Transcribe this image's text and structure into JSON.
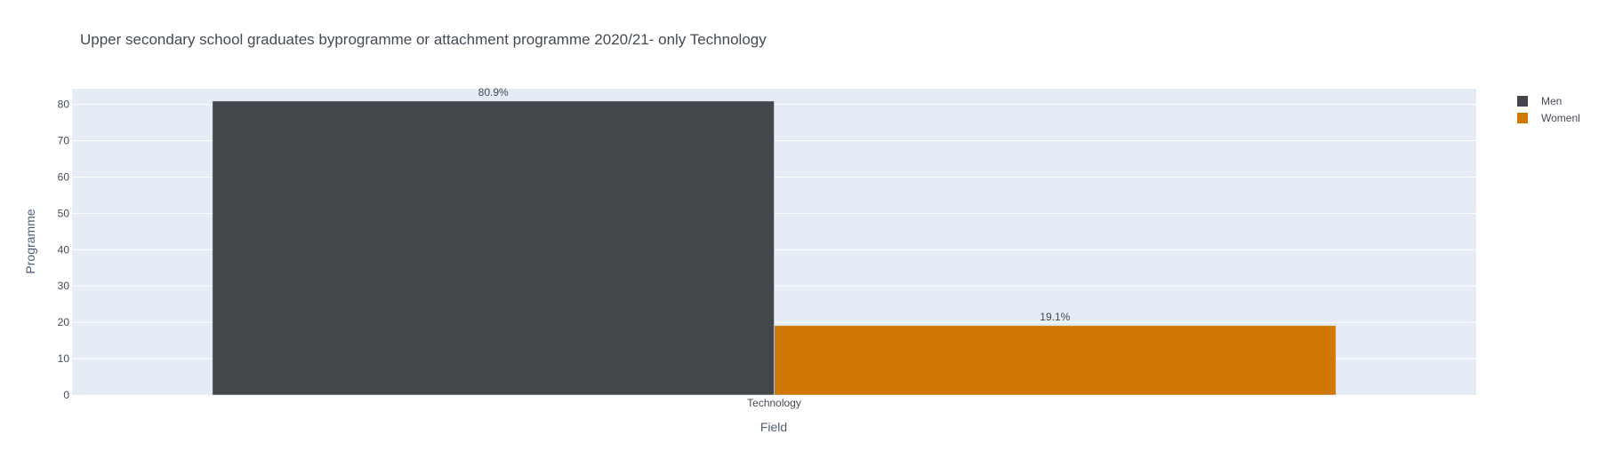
{
  "chart_data": {
    "type": "bar",
    "title": "Upper secondary school graduates byprogramme or attachment programme 2020/21- only Technology",
    "xlabel": "Field",
    "ylabel": "Programme",
    "categories": [
      "Technology"
    ],
    "series": [
      {
        "name": "Men",
        "values": [
          80.9
        ],
        "labels": [
          "80.9%"
        ],
        "color": "#43464b"
      },
      {
        "name": "Womenl",
        "values": [
          19.1
        ],
        "labels": [
          "19.1%"
        ],
        "color": "#d07805"
      }
    ],
    "ylim": [
      0,
      84.3
    ],
    "yticks": [
      0,
      10,
      20,
      30,
      40,
      50,
      60,
      70,
      80
    ],
    "grid": true,
    "legend_position": "top-right",
    "plot_background": "#e5ecf6"
  }
}
